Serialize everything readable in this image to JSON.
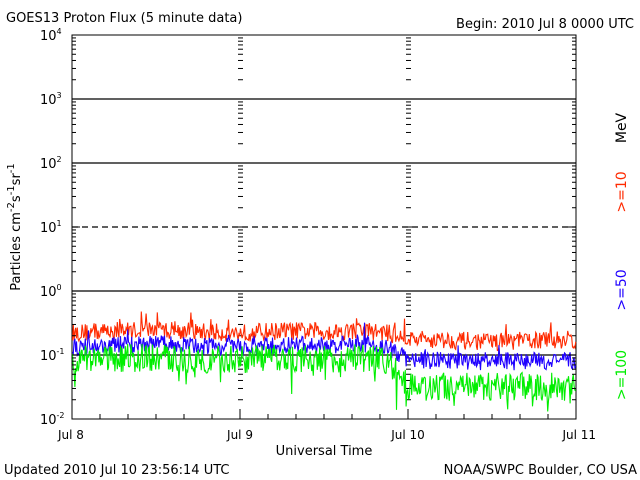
{
  "title": "GOES13 Proton Flux (5 minute data)",
  "begin_label": "Begin: 2010 Jul 8 0000 UTC",
  "updated_label": "Updated 2010 Jul 10 23:56:14 UTC",
  "credit_label": "NOAA/SWPC Boulder, CO USA",
  "colors": {
    "p10": "#ff2a00",
    "p50": "#1f00ff",
    "p100": "#00ee00",
    "axis": "#000000"
  },
  "chart_data": {
    "type": "line",
    "title": "GOES13 Proton Flux (5 minute data)",
    "xlabel": "Universal Time",
    "ylabel": "Particles cm-2 s-1 sr-1",
    "y_scale": "log",
    "ylim": [
      0.01,
      10000
    ],
    "y_ticks": [
      {
        "value": 0.01,
        "base": "10",
        "exp": "-2"
      },
      {
        "value": 0.1,
        "base": "10",
        "exp": "-1"
      },
      {
        "value": 1,
        "base": "10",
        "exp": "0"
      },
      {
        "value": 10,
        "base": "10",
        "exp": "1"
      },
      {
        "value": 100,
        "base": "10",
        "exp": "2"
      },
      {
        "value": 1000,
        "base": "10",
        "exp": "3"
      },
      {
        "value": 10000,
        "base": "10",
        "exp": "4"
      }
    ],
    "x_ticks": [
      "Jul 8",
      "Jul 9",
      "Jul 10",
      "Jul 11"
    ],
    "xlim": [
      "2010-07-08 00:00",
      "2010-07-11 00:00"
    ],
    "grid": "horizontal lines at each decade; dashed line at 10",
    "legend_position": "right (vertical)",
    "legend_unit": "MeV",
    "series": [
      {
        "name": ">=10",
        "x": [
          "2010-07-08 00:00",
          "2010-07-08 06:00",
          "2010-07-08 12:00",
          "2010-07-08 18:00",
          "2010-07-09 00:00",
          "2010-07-09 06:00",
          "2010-07-09 12:00",
          "2010-07-09 18:00",
          "2010-07-09 21:00",
          "2010-07-10 00:00",
          "2010-07-10 06:00",
          "2010-07-10 12:00",
          "2010-07-10 18:00",
          "2010-07-11 00:00"
        ],
        "values": [
          0.22,
          0.24,
          0.25,
          0.23,
          0.22,
          0.24,
          0.23,
          0.24,
          0.22,
          0.18,
          0.17,
          0.16,
          0.17,
          0.17
        ]
      },
      {
        "name": ">=50",
        "x": [
          "2010-07-08 00:00",
          "2010-07-08 06:00",
          "2010-07-08 12:00",
          "2010-07-08 18:00",
          "2010-07-09 00:00",
          "2010-07-09 06:00",
          "2010-07-09 12:00",
          "2010-07-09 18:00",
          "2010-07-09 21:00",
          "2010-07-10 00:00",
          "2010-07-10 06:00",
          "2010-07-10 12:00",
          "2010-07-10 18:00",
          "2010-07-11 00:00"
        ],
        "values": [
          0.13,
          0.14,
          0.15,
          0.14,
          0.13,
          0.14,
          0.14,
          0.15,
          0.13,
          0.085,
          0.08,
          0.08,
          0.08,
          0.08
        ]
      },
      {
        "name": ">=100",
        "x": [
          "2010-07-08 00:00",
          "2010-07-08 06:00",
          "2010-07-08 12:00",
          "2010-07-08 18:00",
          "2010-07-09 00:00",
          "2010-07-09 06:00",
          "2010-07-09 12:00",
          "2010-07-09 18:00",
          "2010-07-09 21:00",
          "2010-07-10 00:00",
          "2010-07-10 06:00",
          "2010-07-10 12:00",
          "2010-07-10 18:00",
          "2010-07-11 00:00"
        ],
        "values": [
          0.085,
          0.09,
          0.09,
          0.085,
          0.085,
          0.09,
          0.085,
          0.09,
          0.085,
          0.033,
          0.032,
          0.032,
          0.032,
          0.032
        ]
      }
    ]
  }
}
